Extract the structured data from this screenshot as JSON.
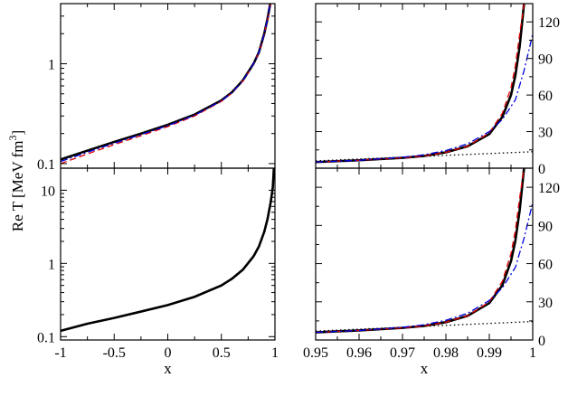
{
  "colors": {
    "solid": "#000000",
    "dotted": "#000000",
    "dashed": "#e00000",
    "dashdot": "#0000e0",
    "dashed_blue": "#3a3aff"
  },
  "ylabel_text": "Re T [MeV fm",
  "ylabel_sup": "3",
  "ylabel_close": "]",
  "chart_data": [
    {
      "id": "top-left",
      "type": "line",
      "xlabel": "",
      "ylabel": "Re T [MeV fm^3]",
      "xlim": [
        -1,
        1
      ],
      "ylim": [
        0.09,
        4
      ],
      "yscale": "log",
      "yticks": [
        0.1,
        1
      ],
      "ytick_labels": [
        "0.1",
        "1"
      ],
      "xticks": [
        -1,
        -0.5,
        0,
        0.5,
        1
      ],
      "xtick_labels": [],
      "grid": false,
      "series": [
        {
          "style": "solid",
          "color": "#000000",
          "x": [
            -1,
            -0.75,
            -0.5,
            -0.25,
            0,
            0.25,
            0.5,
            0.6,
            0.7,
            0.8,
            0.85,
            0.9,
            0.93,
            0.96
          ],
          "y": [
            0.11,
            0.135,
            0.165,
            0.2,
            0.245,
            0.31,
            0.43,
            0.52,
            0.68,
            1.0,
            1.3,
            2.0,
            2.8,
            4.2
          ]
        },
        {
          "style": "dotted",
          "color": "#000000",
          "x": [
            -1,
            -0.75,
            -0.5,
            -0.25,
            0,
            0.25,
            0.5,
            0.6,
            0.7,
            0.8,
            0.85,
            0.9,
            0.93,
            0.96
          ],
          "y": [
            0.11,
            0.135,
            0.165,
            0.2,
            0.245,
            0.31,
            0.43,
            0.52,
            0.68,
            1.0,
            1.33,
            2.1,
            3.0,
            4.5
          ]
        },
        {
          "style": "dashed",
          "color": "#e00000",
          "x": [
            -1,
            -0.75,
            -0.5,
            -0.25,
            0,
            0.25,
            0.5,
            0.6,
            0.7,
            0.8,
            0.85,
            0.9,
            0.93,
            0.96
          ],
          "y": [
            0.1,
            0.125,
            0.155,
            0.19,
            0.235,
            0.3,
            0.42,
            0.51,
            0.67,
            0.99,
            1.29,
            1.98,
            2.75,
            4.1
          ]
        },
        {
          "style": "dashdot",
          "color": "#0000e0",
          "x": [
            -1,
            -0.75,
            -0.5,
            -0.25,
            0,
            0.25,
            0.5,
            0.6,
            0.7,
            0.8,
            0.85,
            0.9,
            0.93,
            0.96
          ],
          "y": [
            0.105,
            0.13,
            0.16,
            0.195,
            0.24,
            0.305,
            0.425,
            0.515,
            0.675,
            1.0,
            1.3,
            2.0,
            2.8,
            4.2
          ]
        }
      ]
    },
    {
      "id": "top-right",
      "type": "line",
      "xlabel": "",
      "ylabel": "",
      "xlim": [
        0.95,
        1.0
      ],
      "ylim": [
        0,
        135
      ],
      "yscale": "linear",
      "yaxis_side": "right",
      "yticks": [
        0,
        30,
        60,
        90,
        120
      ],
      "ytick_labels": [
        "0",
        "30",
        "60",
        "90",
        "120"
      ],
      "xticks": [
        0.95,
        0.96,
        0.97,
        0.98,
        0.99,
        1.0
      ],
      "xtick_labels": [],
      "grid": false,
      "series": [
        {
          "style": "solid",
          "color": "#000000",
          "x": [
            0.95,
            0.96,
            0.97,
            0.975,
            0.98,
            0.985,
            0.99,
            0.993,
            0.995,
            0.996,
            0.997,
            0.998
          ],
          "y": [
            5,
            6.5,
            8.5,
            10,
            13,
            18,
            28,
            42,
            60,
            76,
            100,
            135
          ]
        },
        {
          "style": "dotted",
          "color": "#000000",
          "x": [
            0.95,
            0.96,
            0.97,
            0.98,
            0.99,
            1.0
          ],
          "y": [
            6,
            7.5,
            9,
            10.5,
            12,
            13.5
          ]
        },
        {
          "style": "dashed",
          "color": "#e00000",
          "x": [
            0.95,
            0.96,
            0.97,
            0.975,
            0.98,
            0.985,
            0.99,
            0.993,
            0.995,
            0.996,
            0.997,
            0.998
          ],
          "y": [
            5,
            6.5,
            8.5,
            10,
            13,
            18,
            29,
            45,
            66,
            84,
            110,
            135
          ]
        },
        {
          "style": "dashdot",
          "color": "#0000e0",
          "x": [
            0.95,
            0.96,
            0.97,
            0.975,
            0.98,
            0.985,
            0.99,
            0.993,
            0.996,
            0.998,
            1.0
          ],
          "y": [
            5,
            6.5,
            9,
            11,
            14.5,
            20,
            30,
            40,
            56,
            80,
            110
          ]
        }
      ]
    },
    {
      "id": "bottom-left",
      "type": "line",
      "xlabel": "x",
      "ylabel": "",
      "xlim": [
        -1,
        1
      ],
      "ylim": [
        0.09,
        20
      ],
      "yscale": "log",
      "yticks": [
        0.1,
        1,
        10
      ],
      "ytick_labels": [
        "0.1",
        "1",
        "10"
      ],
      "xticks": [
        -1,
        -0.5,
        0,
        0.5,
        1
      ],
      "xtick_labels": [
        "-1",
        "-0.5",
        "0",
        "0.5",
        "1"
      ],
      "grid": false,
      "series": [
        {
          "style": "solid",
          "color": "#000000",
          "x": [
            -1,
            -0.75,
            -0.5,
            -0.25,
            0,
            0.25,
            0.5,
            0.6,
            0.7,
            0.8,
            0.85,
            0.9,
            0.93,
            0.96,
            0.98,
            0.99
          ],
          "y": [
            0.12,
            0.15,
            0.18,
            0.22,
            0.27,
            0.35,
            0.5,
            0.62,
            0.82,
            1.25,
            1.7,
            2.7,
            4.0,
            6.8,
            11.0,
            20.0
          ]
        },
        {
          "style": "dotted",
          "color": "#000000",
          "x": [
            -1,
            -0.75,
            -0.5,
            -0.25,
            0,
            0.25,
            0.5,
            0.6,
            0.7,
            0.8,
            0.85,
            0.9,
            0.93,
            0.96,
            0.98,
            0.99
          ],
          "y": [
            0.12,
            0.15,
            0.18,
            0.22,
            0.27,
            0.35,
            0.5,
            0.62,
            0.82,
            1.25,
            1.72,
            2.8,
            4.3,
            7.5,
            12.5,
            18.0
          ]
        }
      ]
    },
    {
      "id": "bottom-right",
      "type": "line",
      "xlabel": "x",
      "ylabel": "",
      "xlim": [
        0.95,
        1.0
      ],
      "ylim": [
        0,
        135
      ],
      "yscale": "linear",
      "yaxis_side": "right",
      "yticks": [
        0,
        30,
        60,
        90,
        120
      ],
      "ytick_labels": [
        "0",
        "30",
        "60",
        "90",
        "120"
      ],
      "xticks": [
        0.95,
        0.96,
        0.97,
        0.98,
        0.99,
        1.0
      ],
      "xtick_labels": [
        "0.95",
        "0.96",
        "0.97",
        "0.98",
        "0.99",
        "1"
      ],
      "grid": false,
      "series": [
        {
          "style": "solid",
          "color": "#000000",
          "x": [
            0.95,
            0.96,
            0.97,
            0.975,
            0.98,
            0.985,
            0.99,
            0.993,
            0.995,
            0.996,
            0.997,
            0.998
          ],
          "y": [
            6,
            7.5,
            9.5,
            11,
            14,
            19,
            29,
            43,
            62,
            78,
            102,
            135
          ]
        },
        {
          "style": "dotted",
          "color": "#000000",
          "x": [
            0.95,
            0.96,
            0.97,
            0.98,
            0.99,
            1.0
          ],
          "y": [
            7,
            8.5,
            10,
            11.5,
            13,
            14.5
          ]
        },
        {
          "style": "dashed",
          "color": "#e00000",
          "x": [
            0.95,
            0.96,
            0.97,
            0.975,
            0.98,
            0.985,
            0.99,
            0.993,
            0.995,
            0.996,
            0.997,
            0.998
          ],
          "y": [
            6,
            7.5,
            9.5,
            11,
            14,
            19,
            30,
            46,
            68,
            86,
            112,
            135
          ]
        },
        {
          "style": "dashdot",
          "color": "#0000e0",
          "x": [
            0.95,
            0.96,
            0.97,
            0.975,
            0.98,
            0.985,
            0.99,
            0.993,
            0.996,
            0.998,
            1.0
          ],
          "y": [
            6,
            7.5,
            10,
            12,
            15.5,
            21,
            31,
            41,
            57,
            80,
            108
          ]
        }
      ]
    }
  ]
}
